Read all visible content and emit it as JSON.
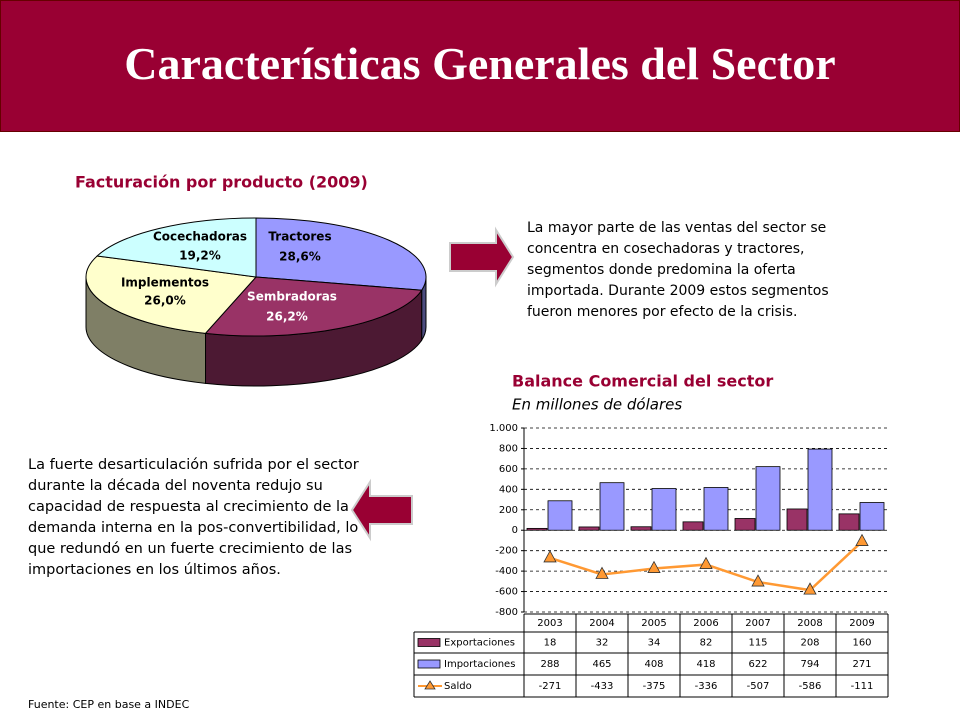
{
  "header": {
    "title": "Características Generales del Sector"
  },
  "texts": {
    "right": "La mayor parte de las ventas del sector se concentra en cosechadoras y tractores, segmentos donde predomina la oferta importada.  Durante 2009 estos segmentos fueron menores por efecto de la crisis.",
    "left": "La fuerte desarticulación sufrida por el sector durante la década del noventa redujo su capacidad de respuesta al crecimiento de la demanda interna en la pos-convertibilidad, lo que redundó en un fuerte crecimiento de las importaciones en los últimos años.",
    "source": "Fuente: CEP en base a INDEC"
  },
  "chart_data": [
    {
      "type": "pie",
      "title": "Facturación por  producto (2009)",
      "categories": [
        "Tractores",
        "Sembradoras",
        "Implementos",
        "Cocechadoras"
      ],
      "values": [
        28.6,
        26.2,
        26.0,
        19.2
      ],
      "value_labels": [
        "28,6%",
        "26,2%",
        "26,0%",
        "19,2%"
      ],
      "colors": [
        "#9999ff",
        "#993366",
        "#ffffcc",
        "#ccffff"
      ]
    },
    {
      "type": "bar",
      "title": "Balance Comercial del sector",
      "subtitle": "En millones de dólares",
      "categories": [
        "2003",
        "2004",
        "2005",
        "2006",
        "2007",
        "2008",
        "2009"
      ],
      "series": [
        {
          "name": "Exportaciones",
          "color": "#993366",
          "values": [
            18,
            32,
            34,
            82,
            115,
            208,
            160
          ]
        },
        {
          "name": "Importaciones",
          "color": "#9999ff",
          "values": [
            288,
            465,
            408,
            418,
            622,
            794,
            271
          ]
        },
        {
          "name": "Saldo",
          "color": "#ff9933",
          "type": "line",
          "values": [
            -271,
            -433,
            -375,
            -336,
            -507,
            -586,
            -111
          ]
        }
      ],
      "ylim": [
        -800,
        1000
      ],
      "yticks": [
        {
          "value": 1000,
          "label": "1.000"
        },
        800,
        600,
        400,
        200,
        0,
        -200,
        -400,
        -600,
        -800
      ],
      "grid": true
    }
  ]
}
